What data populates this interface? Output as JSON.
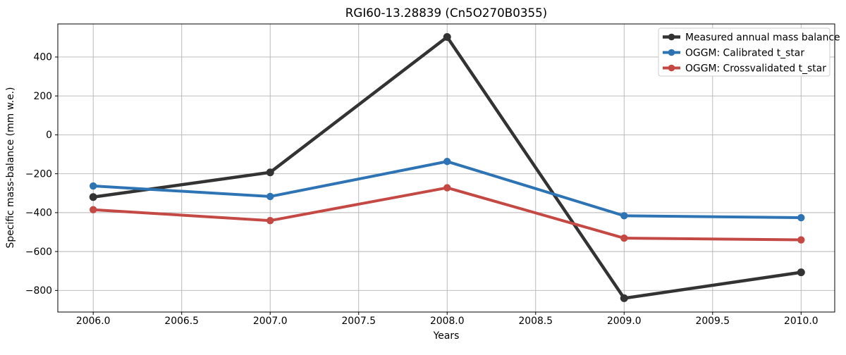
{
  "figure": {
    "background": "#ffffff",
    "frame_color": "#000000",
    "grid_color": "#b5b5b5"
  },
  "chart_data": {
    "type": "line",
    "title": "RGI60-13.28839 (Cn5O270B0355)",
    "xlabel": "Years",
    "ylabel": "Specific mass-balance (mm w.e.)",
    "x": [
      2006,
      2007,
      2008,
      2009,
      2010
    ],
    "series": [
      {
        "name": "Measured annual mass balance",
        "color": "#333333",
        "marker": "o",
        "linewidth": 4.5,
        "values": [
          -320,
          -193,
          503,
          -840,
          -707
        ]
      },
      {
        "name": "OGGM: Calibrated t_star",
        "color": "#2e73b3",
        "marker": "o",
        "linewidth": 4.0,
        "values": [
          -263,
          -317,
          -137,
          -416,
          -426
        ]
      },
      {
        "name": "OGGM: Crossvalidated t_star",
        "color": "#c44945",
        "marker": "o",
        "linewidth": 4.0,
        "values": [
          -385,
          -441,
          -272,
          -531,
          -540
        ]
      }
    ],
    "xlim": [
      2005.8,
      2010.19
    ],
    "ylim": [
      -911,
      570
    ],
    "xticks": [
      2006.0,
      2006.5,
      2007.0,
      2007.5,
      2008.0,
      2008.5,
      2009.0,
      2009.5,
      2010.0
    ],
    "xtick_labels": [
      "2006.0",
      "2006.5",
      "2007.0",
      "2007.5",
      "2008.0",
      "2008.5",
      "2009.0",
      "2009.5",
      "2010.0"
    ],
    "yticks": [
      400,
      200,
      0,
      -200,
      -400,
      -600,
      -800
    ],
    "ytick_labels": [
      "400",
      "200",
      "0",
      "−200",
      "−400",
      "−600",
      "−800"
    ],
    "grid": true,
    "legend_position": "upper right"
  }
}
